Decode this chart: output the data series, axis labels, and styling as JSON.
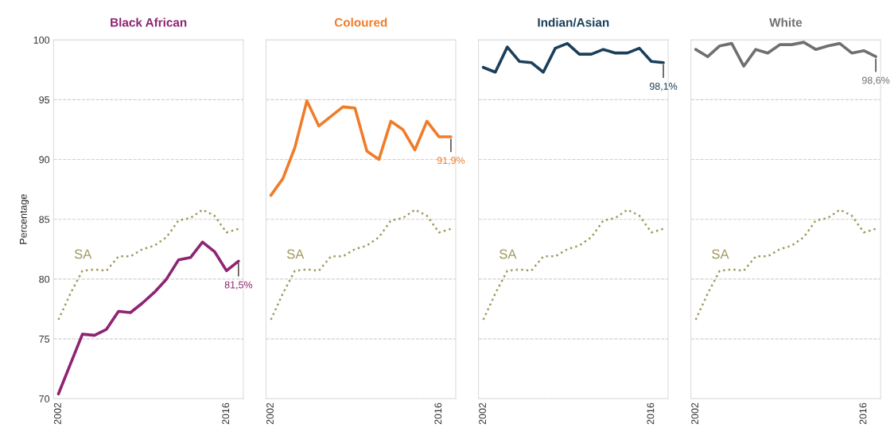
{
  "chart_data": [
    {
      "type": "line",
      "title": "Black African",
      "ylabel": "Percentage",
      "categories": [
        "2002",
        null,
        null,
        null,
        null,
        null,
        null,
        null,
        null,
        null,
        null,
        null,
        null,
        null,
        "2016",
        null
      ],
      "ylim": [
        70,
        100
      ],
      "yticks": [
        70,
        75,
        80,
        85,
        90,
        95,
        100
      ],
      "grid": "y",
      "tick_labels": "xy",
      "legend": false,
      "series": [
        {
          "name": "SA",
          "color": "#a09a5e",
          "line_style": "dotted",
          "values": [
            76.6,
            78.8,
            80.7,
            80.8,
            80.7,
            81.9,
            81.9,
            82.5,
            82.8,
            83.5,
            84.9,
            85.1,
            85.8,
            85.3,
            83.9,
            84.2
          ]
        },
        {
          "color": "#8e2472",
          "line_style": "solid",
          "values": [
            70.4,
            72.9,
            75.4,
            75.3,
            75.8,
            77.3,
            77.2,
            78.0,
            78.9,
            80.0,
            81.6,
            81.8,
            83.1,
            82.3,
            80.7,
            81.5
          ]
        }
      ],
      "annotations": [
        "81,5%"
      ]
    },
    {
      "type": "line",
      "title": "Coloured",
      "categories": [
        "2002",
        null,
        null,
        null,
        null,
        null,
        null,
        null,
        null,
        null,
        null,
        null,
        null,
        null,
        "2016",
        null
      ],
      "ylim": [
        70,
        100
      ],
      "yticks": [
        70,
        75,
        80,
        85,
        90,
        95,
        100
      ],
      "grid": "y",
      "tick_labels": "x",
      "legend": false,
      "series": [
        {
          "name": "SA",
          "color": "#a09a5e",
          "line_style": "dotted",
          "values": [
            76.6,
            78.8,
            80.7,
            80.8,
            80.7,
            81.9,
            81.9,
            82.5,
            82.8,
            83.5,
            84.9,
            85.1,
            85.8,
            85.3,
            83.9,
            84.2
          ]
        },
        {
          "color": "#f07c2a",
          "line_style": "solid",
          "values": [
            87.0,
            88.4,
            91.0,
            94.9,
            92.8,
            93.6,
            94.4,
            94.3,
            90.7,
            90.0,
            93.2,
            92.5,
            90.8,
            93.2,
            91.9,
            91.9
          ]
        }
      ],
      "annotations": [
        "91,9%"
      ]
    },
    {
      "type": "line",
      "title": "Indian/Asian",
      "categories": [
        "2002",
        null,
        null,
        null,
        null,
        null,
        null,
        null,
        null,
        null,
        null,
        null,
        null,
        null,
        "2016",
        null
      ],
      "ylim": [
        70,
        100
      ],
      "yticks": [
        70,
        75,
        80,
        85,
        90,
        95,
        100
      ],
      "grid": "y",
      "tick_labels": "x",
      "legend": false,
      "series": [
        {
          "name": "SA",
          "color": "#a09a5e",
          "line_style": "dotted",
          "values": [
            76.6,
            78.8,
            80.7,
            80.8,
            80.7,
            81.9,
            81.9,
            82.5,
            82.8,
            83.5,
            84.9,
            85.1,
            85.8,
            85.3,
            83.9,
            84.2
          ]
        },
        {
          "color": "#1b3f5a",
          "line_style": "solid",
          "values": [
            97.7,
            97.3,
            99.4,
            98.2,
            98.1,
            97.3,
            99.3,
            99.7,
            98.8,
            98.8,
            99.2,
            98.9,
            98.9,
            99.3,
            98.2,
            98.1
          ]
        }
      ],
      "annotations": [
        "98,1%"
      ]
    },
    {
      "type": "line",
      "title": "White",
      "categories": [
        "2002",
        null,
        null,
        null,
        null,
        null,
        null,
        null,
        null,
        null,
        null,
        null,
        null,
        null,
        "2016",
        null
      ],
      "ylim": [
        70,
        100
      ],
      "yticks": [
        70,
        75,
        80,
        85,
        90,
        95,
        100
      ],
      "grid": "y",
      "tick_labels": "x",
      "legend": false,
      "series": [
        {
          "name": "SA",
          "color": "#a09a5e",
          "line_style": "dotted",
          "values": [
            76.6,
            78.8,
            80.7,
            80.8,
            80.7,
            81.9,
            81.9,
            82.5,
            82.8,
            83.5,
            84.9,
            85.1,
            85.8,
            85.3,
            83.9,
            84.2
          ]
        },
        {
          "color": "#707070",
          "line_style": "solid",
          "values": [
            99.2,
            98.6,
            99.5,
            99.7,
            97.8,
            99.2,
            98.9,
            99.6,
            99.6,
            99.8,
            99.2,
            99.5,
            99.7,
            98.9,
            99.1,
            98.6
          ]
        }
      ],
      "annotations": [
        "98,6%"
      ]
    }
  ]
}
